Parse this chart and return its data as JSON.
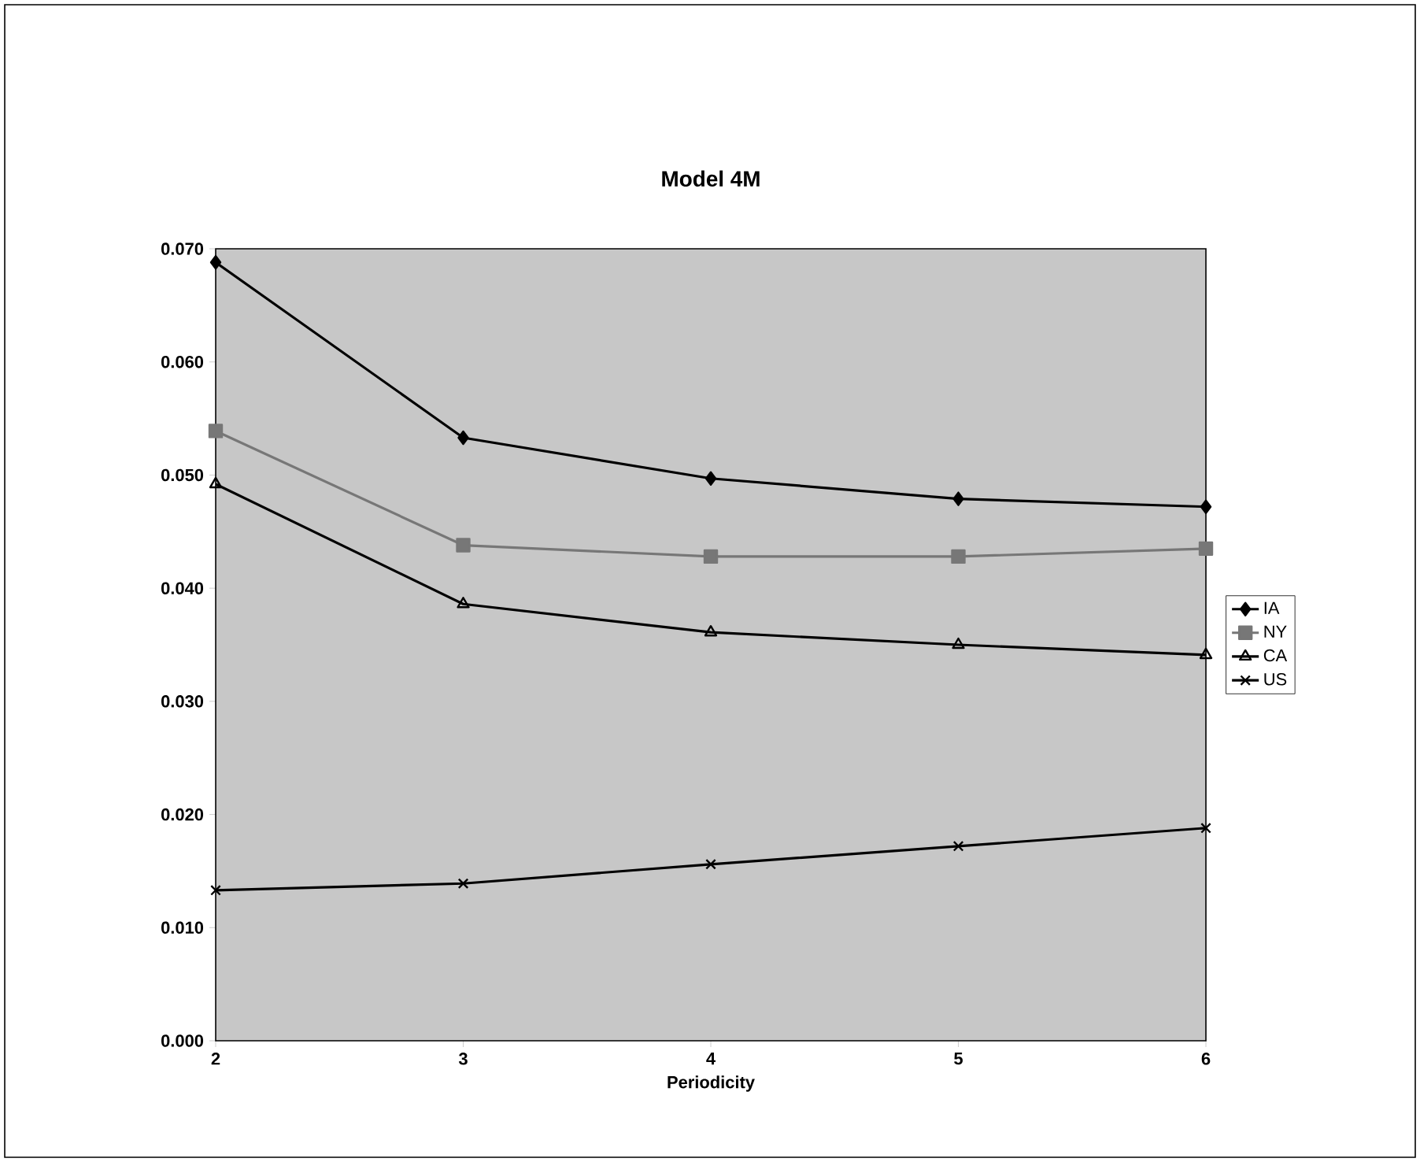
{
  "chart_data": {
    "type": "line",
    "title": "Model 4M",
    "xlabel": "Periodicity",
    "x": [
      2,
      3,
      4,
      5,
      6
    ],
    "xlim": [
      2,
      6
    ],
    "xticks": [
      2,
      3,
      4,
      5,
      6
    ],
    "ylim": [
      0,
      0.07
    ],
    "yticks": [
      {
        "value": 0,
        "label": "0.000"
      },
      {
        "value": 0.01,
        "label": "0.010"
      },
      {
        "value": 0.02,
        "label": "0.020"
      },
      {
        "value": 0.03,
        "label": "0.030"
      },
      {
        "value": 0.04,
        "label": "0.040"
      },
      {
        "value": 0.05,
        "label": "0.050"
      },
      {
        "value": 0.06,
        "label": "0.060"
      },
      {
        "value": 0.07,
        "label": "0.070"
      }
    ],
    "grid": false,
    "legend": "right",
    "line_style": "solid",
    "series": [
      {
        "name": "IA",
        "color": "#000000",
        "marker": "diamond",
        "values": [
          0.0688,
          0.0533,
          0.0497,
          0.0479,
          0.0472
        ]
      },
      {
        "name": "NY",
        "color": "#777777",
        "marker": "square",
        "values": [
          0.0539,
          0.0438,
          0.0428,
          0.0428,
          0.0435
        ]
      },
      {
        "name": "CA",
        "color": "#000000",
        "marker": "triangle",
        "values": [
          0.0492,
          0.0386,
          0.0361,
          0.035,
          0.0341
        ]
      },
      {
        "name": "US",
        "color": "#000000",
        "marker": "cross",
        "values": [
          0.0133,
          0.0139,
          0.0156,
          0.0172,
          0.0188
        ]
      }
    ]
  }
}
